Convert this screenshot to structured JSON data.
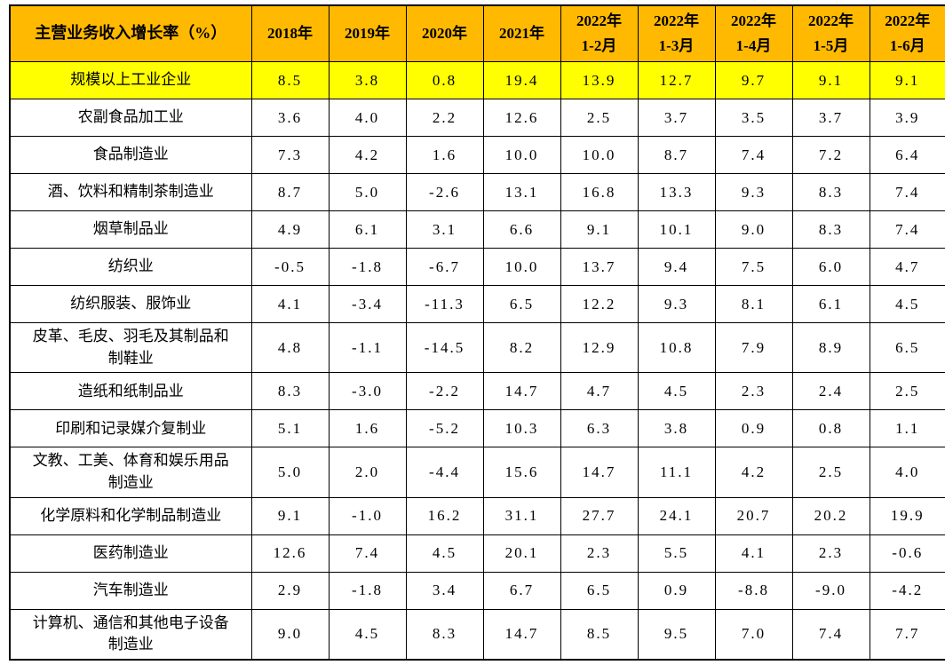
{
  "colors": {
    "page_bg": "#FFFFFF",
    "header_bg": "#FFB900",
    "highlight_row_bg": "#FFFF00",
    "border": "#000000",
    "text": "#000000"
  },
  "chart_data": {
    "type": "table",
    "title": "主营业务收入增长率（%）",
    "columns": [
      "2018年",
      "2019年",
      "2020年",
      "2021年",
      "2022年\n1-2月",
      "2022年\n1-3月",
      "2022年\n1-4月",
      "2022年\n1-5月",
      "2022年\n1-6月"
    ],
    "rows": [
      {
        "label": "规模以上工业企业",
        "highlight": true,
        "values": [
          "8.5",
          "3.8",
          "0.8",
          "19.4",
          "13.9",
          "12.7",
          "9.7",
          "9.1",
          "9.1"
        ]
      },
      {
        "label": "农副食品加工业",
        "highlight": false,
        "values": [
          "3.6",
          "4.0",
          "2.2",
          "12.6",
          "2.5",
          "3.7",
          "3.5",
          "3.7",
          "3.9"
        ]
      },
      {
        "label": "食品制造业",
        "highlight": false,
        "values": [
          "7.3",
          "4.2",
          "1.6",
          "10.0",
          "10.0",
          "8.7",
          "7.4",
          "7.2",
          "6.4"
        ]
      },
      {
        "label": "酒、饮料和精制茶制造业",
        "highlight": false,
        "values": [
          "8.7",
          "5.0",
          "-2.6",
          "13.1",
          "16.8",
          "13.3",
          "9.3",
          "8.3",
          "7.4"
        ]
      },
      {
        "label": "烟草制品业",
        "highlight": false,
        "values": [
          "4.9",
          "6.1",
          "3.1",
          "6.6",
          "9.1",
          "10.1",
          "9.0",
          "8.3",
          "7.4"
        ]
      },
      {
        "label": "纺织业",
        "highlight": false,
        "values": [
          "-0.5",
          "-1.8",
          "-6.7",
          "10.0",
          "13.7",
          "9.4",
          "7.5",
          "6.0",
          "4.7"
        ]
      },
      {
        "label": "纺织服装、服饰业",
        "highlight": false,
        "values": [
          "4.1",
          "-3.4",
          "-11.3",
          "6.5",
          "12.2",
          "9.3",
          "8.1",
          "6.1",
          "4.5"
        ]
      },
      {
        "label": "皮革、毛皮、羽毛及其制品和制鞋业",
        "highlight": false,
        "values": [
          "4.8",
          "-1.1",
          "-14.5",
          "8.2",
          "12.9",
          "10.8",
          "7.9",
          "8.9",
          "6.5"
        ]
      },
      {
        "label": "造纸和纸制品业",
        "highlight": false,
        "values": [
          "8.3",
          "-3.0",
          "-2.2",
          "14.7",
          "4.7",
          "4.5",
          "2.3",
          "2.4",
          "2.5"
        ]
      },
      {
        "label": "印刷和记录媒介复制业",
        "highlight": false,
        "values": [
          "5.1",
          "1.6",
          "-5.2",
          "10.3",
          "6.3",
          "3.8",
          "0.9",
          "0.8",
          "1.1"
        ]
      },
      {
        "label": "文教、工美、体育和娱乐用品制造业",
        "highlight": false,
        "values": [
          "5.0",
          "2.0",
          "-4.4",
          "15.6",
          "14.7",
          "11.1",
          "4.2",
          "2.5",
          "4.0"
        ]
      },
      {
        "label": "化学原料和化学制品制造业",
        "highlight": false,
        "values": [
          "9.1",
          "-1.0",
          "16.2",
          "31.1",
          "27.7",
          "24.1",
          "20.7",
          "20.2",
          "19.9"
        ]
      },
      {
        "label": "医药制造业",
        "highlight": false,
        "values": [
          "12.6",
          "7.4",
          "4.5",
          "20.1",
          "2.3",
          "5.5",
          "4.1",
          "2.3",
          "-0.6"
        ]
      },
      {
        "label": "汽车制造业",
        "highlight": false,
        "values": [
          "2.9",
          "-1.8",
          "3.4",
          "6.7",
          "6.5",
          "0.9",
          "-8.8",
          "-9.0",
          "-4.2"
        ]
      },
      {
        "label": "计算机、通信和其他电子设备制造业",
        "highlight": false,
        "values": [
          "9.0",
          "4.5",
          "8.3",
          "14.7",
          "8.5",
          "9.5",
          "7.0",
          "7.4",
          "7.7"
        ]
      }
    ]
  }
}
